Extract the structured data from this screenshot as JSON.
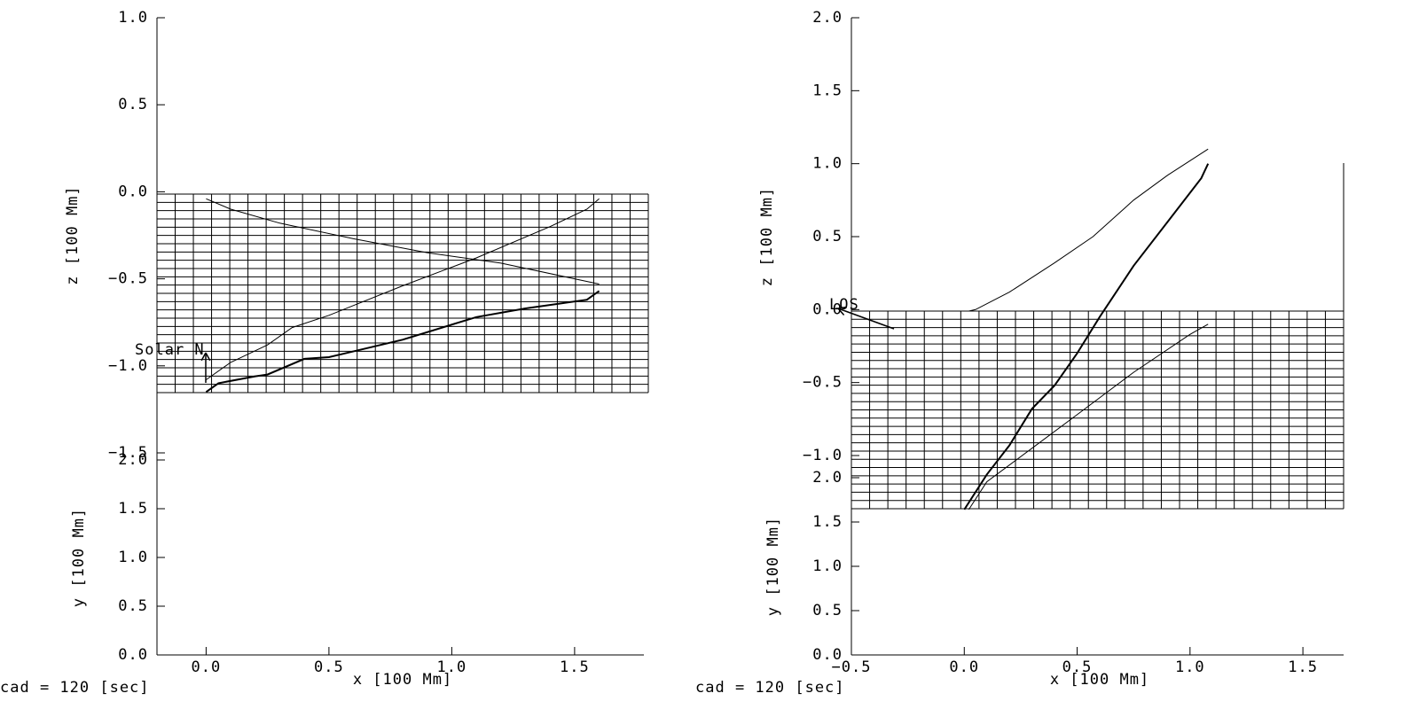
{
  "chart_data": [
    {
      "type": "line",
      "xlabel": "x [100 Mm]",
      "ylabel": "z [100 Mm]",
      "y2label": "y [100 Mm]",
      "footer": "cad =  120 [sec]",
      "annotation": "Solar N",
      "xlim": [
        -0.2,
        1.8
      ],
      "xticks": [
        {
          "value": 0,
          "label": "0.0"
        },
        {
          "value": 0.5,
          "label": "0.5"
        },
        {
          "value": 1,
          "label": "1.0"
        },
        {
          "value": 1.5,
          "label": "1.5"
        }
      ],
      "ylim": [
        -1.5,
        1.0
      ],
      "yticks": [
        {
          "value": 1,
          "label": "1.0"
        },
        {
          "value": 0.5,
          "label": "0.5"
        },
        {
          "value": 0,
          "label": "0.0"
        },
        {
          "value": -0.5,
          "label": "−0.5"
        },
        {
          "value": -1,
          "label": "−1.0"
        },
        {
          "value": -1.5,
          "label": "−1.5"
        }
      ],
      "y2lim": [
        0,
        2.0
      ],
      "y2ticks": [
        {
          "value": 2,
          "label": "2.0"
        },
        {
          "value": 1.5,
          "label": "1.5"
        },
        {
          "value": 1,
          "label": "1.0"
        },
        {
          "value": 0.5,
          "label": "0.5"
        },
        {
          "value": 0,
          "label": "0.0"
        }
      ],
      "series": [
        {
          "color": "#000",
          "width": 1,
          "x": [
            0,
            0.1,
            0.3,
            0.6,
            0.9,
            1.2,
            1.5,
            1.6
          ],
          "values": [
            -0.04,
            -0.1,
            -0.18,
            -0.27,
            -0.35,
            -0.41,
            -0.5,
            -0.53
          ]
        },
        {
          "color": "#000",
          "width": 1,
          "x": [
            0,
            0.1,
            0.25,
            0.35,
            0.5,
            0.8,
            1.1,
            1.4,
            1.55,
            1.6
          ],
          "values": [
            -1.08,
            -0.98,
            -0.88,
            -0.78,
            -0.71,
            -0.54,
            -0.38,
            -0.2,
            -0.1,
            -0.04
          ]
        },
        {
          "color": "#000",
          "width": 2,
          "x": [
            0,
            0.05,
            0.2,
            0.25,
            0.4,
            0.5,
            0.8,
            1.1,
            1.3,
            1.55,
            1.6
          ],
          "values": [
            -1.15,
            -1.1,
            -1.06,
            -1.05,
            -0.96,
            -0.95,
            -0.85,
            -0.72,
            -0.67,
            -0.62,
            -0.57
          ]
        }
      ]
    },
    {
      "type": "line",
      "xlabel": "x [100 Mm]",
      "ylabel": "z [100 Mm]",
      "y2label": "y [100 Mm]",
      "footer": "cad =  120 [sec]",
      "annotation": "LOS",
      "xlim": [
        -0.5,
        1.7
      ],
      "xticks": [
        {
          "value": -0.5,
          "label": "−0.5"
        },
        {
          "value": 0,
          "label": "0.0"
        },
        {
          "value": 0.5,
          "label": "0.5"
        },
        {
          "value": 1,
          "label": "1.0"
        },
        {
          "value": 1.5,
          "label": "1.5"
        }
      ],
      "ylim": [
        -1.0,
        2.0
      ],
      "yticks": [
        {
          "value": 2,
          "label": "2.0"
        },
        {
          "value": 1.5,
          "label": "1.5"
        },
        {
          "value": 1,
          "label": "1.0"
        },
        {
          "value": 0.5,
          "label": "0.5"
        },
        {
          "value": 0,
          "label": "0.0"
        },
        {
          "value": -0.5,
          "label": "−0.5"
        },
        {
          "value": -1,
          "label": "−1.0"
        }
      ],
      "y2lim": [
        0,
        2.0
      ],
      "y2ticks": [
        {
          "value": 2,
          "label": "2.0"
        },
        {
          "value": 1.5,
          "label": "1.5"
        },
        {
          "value": 1,
          "label": "1.0"
        },
        {
          "value": 0.5,
          "label": "0.5"
        },
        {
          "value": 0,
          "label": "0.0"
        }
      ],
      "series": [
        {
          "color": "#000",
          "width": 1,
          "x": [
            0.02,
            0.05,
            0.2,
            0.4,
            0.57,
            0.75,
            0.9,
            1.08
          ],
          "values": [
            -0.01,
            0.0,
            0.12,
            0.32,
            0.5,
            0.75,
            0.92,
            1.1
          ]
        },
        {
          "color": "#000",
          "width": 2,
          "x": [
            0,
            0.1,
            0.2,
            0.3,
            0.4,
            0.5,
            0.6,
            0.75,
            0.9,
            1.05,
            1.08
          ],
          "values": [
            -1.37,
            -1.13,
            -0.93,
            -0.68,
            -0.52,
            -0.3,
            -0.05,
            0.3,
            0.6,
            0.9,
            1.0
          ]
        },
        {
          "color": "#000",
          "width": 1,
          "x": [
            0.02,
            0.1,
            0.3,
            0.5,
            0.75,
            1.0,
            1.08
          ],
          "values": [
            -1.37,
            -1.18,
            -0.95,
            -0.72,
            -0.43,
            -0.17,
            -0.1
          ]
        }
      ]
    }
  ]
}
